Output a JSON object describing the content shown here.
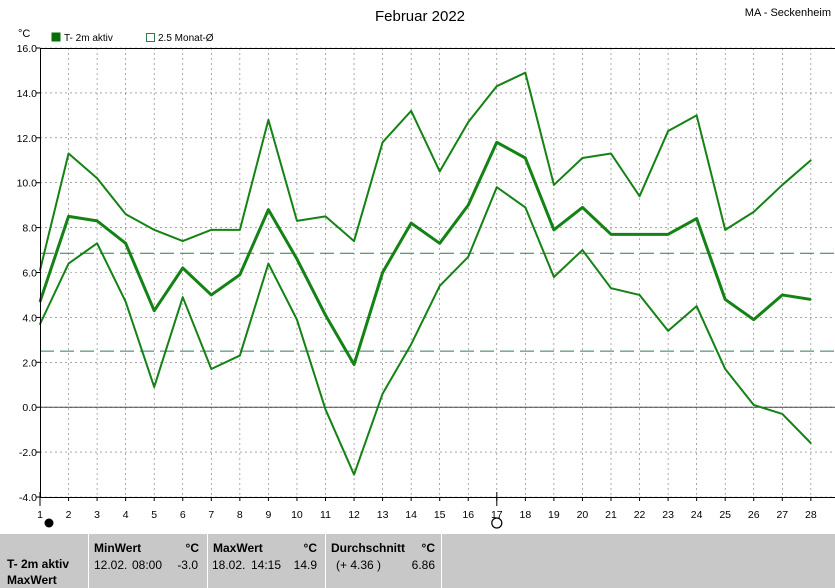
{
  "chart_data": {
    "type": "line",
    "title": "Februar 2022",
    "station": "MA - Seckenheim",
    "ylabel": "°C",
    "ylim": [
      -4.0,
      16.0
    ],
    "y_ticks": [
      "-4.0",
      "-2.0",
      "0.0",
      "2.0",
      "4.0",
      "6.0",
      "8.0",
      "10.0",
      "12.0",
      "14.0",
      "16.0"
    ],
    "x": [
      1,
      2,
      3,
      4,
      5,
      6,
      7,
      8,
      9,
      10,
      11,
      12,
      13,
      14,
      15,
      16,
      17,
      18,
      19,
      20,
      21,
      22,
      23,
      24,
      25,
      26,
      27,
      28
    ],
    "x_labels": [
      "1",
      "2",
      "3",
      "4",
      "5",
      "6",
      "7",
      "8",
      "9",
      "10",
      "11",
      "12",
      "13",
      "14",
      "15",
      "16",
      "17",
      "18",
      "19",
      "20",
      "21",
      "22",
      "23",
      "24",
      "25",
      "26",
      "27",
      "28"
    ],
    "grid": true,
    "legend": [
      {
        "name": "T- 2m aktiv",
        "color": "#0a6e0a",
        "style": "filled-box"
      },
      {
        "name": "2.5 Monat-Ø",
        "color": "#2e7d4f",
        "style": "open-box"
      }
    ],
    "series": [
      {
        "name": "T- 2m aktiv",
        "role": "max",
        "color": "#148214",
        "values": [
          6.1,
          11.3,
          10.2,
          8.6,
          7.9,
          7.4,
          7.9,
          7.9,
          12.8,
          8.3,
          8.5,
          7.4,
          11.8,
          13.2,
          10.5,
          12.7,
          14.3,
          14.9,
          9.9,
          11.1,
          11.3,
          9.4,
          12.3,
          13.0,
          7.9,
          8.7,
          9.9,
          11.0
        ]
      },
      {
        "name": "T- 2m aktiv",
        "role": "mean",
        "color": "#148214",
        "values": [
          4.7,
          8.5,
          8.3,
          7.3,
          4.3,
          6.2,
          5.0,
          5.9,
          8.8,
          6.6,
          4.1,
          1.9,
          6.0,
          8.2,
          7.3,
          9.0,
          11.8,
          11.1,
          7.9,
          8.9,
          7.7,
          7.7,
          7.7,
          8.4,
          4.8,
          3.9,
          5.0,
          4.8
        ]
      },
      {
        "name": "T- 2m aktiv",
        "role": "min",
        "color": "#148214",
        "values": [
          3.7,
          6.4,
          7.3,
          4.7,
          0.9,
          4.9,
          1.7,
          2.3,
          6.4,
          3.9,
          -0.1,
          -3.0,
          0.6,
          2.8,
          5.4,
          6.7,
          9.8,
          8.9,
          5.8,
          7.0,
          5.3,
          5.0,
          3.4,
          4.5,
          1.7,
          0.1,
          -0.3,
          -1.6
        ]
      }
    ],
    "reference_lines": [
      {
        "name": "2.5 Monat-Ø",
        "role": "mean-max",
        "value": 6.86,
        "color": "#2e7d4f",
        "dash": true
      },
      {
        "name": "2.5 Monat-Ø",
        "role": "mean-min",
        "value": 2.5,
        "color": "#2e7d4f",
        "dash": true
      }
    ],
    "markers": [
      {
        "kind": "filled-circle",
        "x": 1
      },
      {
        "kind": "open-circle",
        "x": 17
      }
    ]
  },
  "stats": {
    "series_label": "T- 2m aktiv",
    "row2_label": "MaxWert",
    "min": {
      "label": "MinWert",
      "unit": "°C",
      "date": "12.02.",
      "time": "08:00",
      "value": "-3.0"
    },
    "max": {
      "label": "MaxWert",
      "unit": "°C",
      "date": "18.02.",
      "time": "14:15",
      "value": "14.9"
    },
    "avg": {
      "label": "Durchschnitt",
      "unit": "°C",
      "deviation": "(+ 4.36 )",
      "value": "6.86"
    }
  }
}
